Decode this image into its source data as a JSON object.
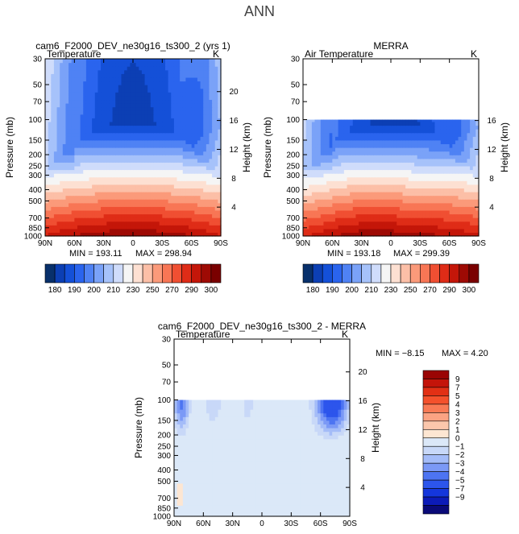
{
  "figure_title": "ANN",
  "colors": {
    "abs_scale": [
      "#08306b",
      "#0c3fb4",
      "#1450d8",
      "#2a64ee",
      "#4f82f4",
      "#7aa2f8",
      "#a6c2fa",
      "#cfdcfb",
      "#f5f5f5",
      "#fde0d2",
      "#fcbfa7",
      "#fb9a7a",
      "#f87655",
      "#f04f32",
      "#df2c17",
      "#c41609",
      "#9e0a04",
      "#7a0000"
    ],
    "diff_scale": [
      "#0a0a78",
      "#0c1bb8",
      "#1436dc",
      "#2c55ec",
      "#4d74f2",
      "#7b99f6",
      "#a4bcf8",
      "#c8d8f8",
      "#dbe8f8",
      "#fde6d2",
      "#fbc7ac",
      "#fba383",
      "#f97a55",
      "#f4512c",
      "#e23015",
      "#c4140a",
      "#9a0404"
    ]
  },
  "chart_data": [
    {
      "type": "heatmap",
      "title": "cam6_F2000_DEV_ne30g16_ts300_2 (yrs 1)",
      "variable": "Temperature",
      "units": "K",
      "ylabel": "Pressure (mb)",
      "y2label": "Height (km)",
      "x_ticks": [
        "90N",
        "60N",
        "30N",
        "0",
        "30S",
        "60S",
        "90S"
      ],
      "y_ticks": [
        "30",
        "50",
        "70",
        "100",
        "150",
        "200",
        "250",
        "300",
        "400",
        "500",
        "700",
        "850",
        "1000"
      ],
      "y2_ticks": [
        "20",
        "16",
        "12",
        "8",
        "4"
      ],
      "ylim_mb": [
        1000,
        30
      ],
      "min_label": "MIN = 193.11",
      "max_label": "MAX = 298.94",
      "min": 193.11,
      "max": 298.94,
      "data_top_mb": 30,
      "colorbar_labels": [
        "180",
        "190",
        "200",
        "210",
        "230",
        "250",
        "270",
        "290",
        "300"
      ],
      "colorbar_boxes": 18
    },
    {
      "type": "heatmap",
      "title": "MERRA",
      "variable": "Air Temperature",
      "units": "K",
      "ylabel": "Pressure (mb)",
      "y2label": "Height (km)",
      "x_ticks": [
        "90N",
        "60N",
        "30N",
        "0",
        "30S",
        "60S",
        "90S"
      ],
      "y_ticks": [
        "30",
        "50",
        "70",
        "100",
        "150",
        "200",
        "250",
        "300",
        "400",
        "500",
        "700",
        "850",
        "1000"
      ],
      "y2_ticks": [
        "16",
        "12",
        "8",
        "4"
      ],
      "ylim_mb": [
        1000,
        30
      ],
      "min_label": "MIN = 193.18",
      "max_label": "MAX = 299.39",
      "min": 193.18,
      "max": 299.39,
      "data_top_mb": 100,
      "colorbar_labels": [
        "180",
        "190",
        "200",
        "210",
        "230",
        "250",
        "270",
        "290",
        "300"
      ],
      "colorbar_boxes": 18
    },
    {
      "type": "heatmap",
      "title": "cam6_F2000_DEV_ne30g16_ts300_2 - MERRA",
      "variable": "Temperature",
      "units": "K",
      "ylabel": "Pressure (mb)",
      "y2label": "Height (km)",
      "x_ticks": [
        "90N",
        "60N",
        "30N",
        "0",
        "30S",
        "60S",
        "90S"
      ],
      "y_ticks": [
        "30",
        "50",
        "70",
        "100",
        "150",
        "200",
        "250",
        "300",
        "400",
        "500",
        "700",
        "850",
        "1000"
      ],
      "y2_ticks": [
        "20",
        "16",
        "12",
        "8",
        "4"
      ],
      "ylim_mb": [
        1000,
        30
      ],
      "min_label": "MIN = −8.15",
      "max_label": "MAX = 4.20",
      "min": -8.15,
      "max": 4.2,
      "data_top_mb": 100,
      "colorbar_labels": [
        "9",
        "7",
        "5",
        "4",
        "3",
        "2",
        "1",
        "0",
        "−1",
        "−2",
        "−3",
        "−4",
        "−5",
        "−7",
        "−9"
      ],
      "colorbar_boxes": 17
    }
  ]
}
